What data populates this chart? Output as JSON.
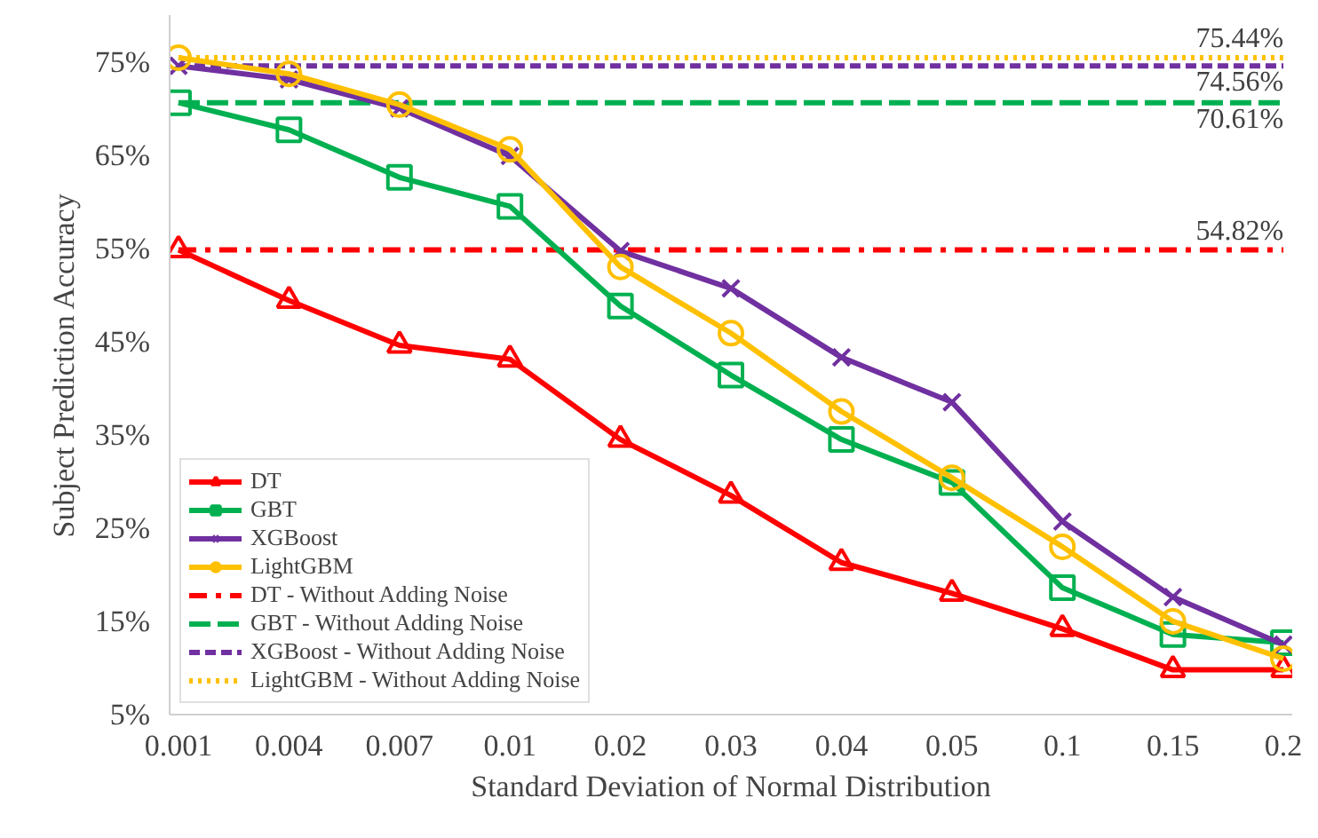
{
  "chart_data": {
    "type": "line",
    "xlabel": "Standard Deviation of Normal Distribution",
    "ylabel": "Subject Prediction Accuracy",
    "categories": [
      "0.001",
      "0.004",
      "0.007",
      "0.01",
      "0.02",
      "0.03",
      "0.04",
      "0.05",
      "0.1",
      "0.15",
      "0.2"
    ],
    "series": [
      {
        "name": "DT",
        "color": "#ff0000",
        "marker": "triangle",
        "line_style": "solid",
        "values": [
          54.82,
          49.4,
          44.6,
          43.1,
          34.5,
          28.5,
          21.3,
          18.0,
          14.2,
          9.8,
          9.8
        ]
      },
      {
        "name": "GBT",
        "color": "#00b050",
        "marker": "square",
        "line_style": "solid",
        "values": [
          70.61,
          67.7,
          62.6,
          59.5,
          48.8,
          41.4,
          34.5,
          29.9,
          18.6,
          13.6,
          12.7
        ]
      },
      {
        "name": "XGBoost",
        "color": "#7030a0",
        "marker": "cross",
        "line_style": "solid",
        "values": [
          74.56,
          73.1,
          70.0,
          64.9,
          54.7,
          50.7,
          43.3,
          38.5,
          25.7,
          17.6,
          12.5
        ]
      },
      {
        "name": "LightGBM",
        "color": "#ffc000",
        "marker": "circle",
        "line_style": "solid",
        "values": [
          75.44,
          73.7,
          70.4,
          65.6,
          53.0,
          45.9,
          37.5,
          30.4,
          23.0,
          15.0,
          11.0
        ]
      },
      {
        "name": "DT - Without Adding Noise",
        "color": "#ff0000",
        "marker": "none",
        "line_style": "dashdot",
        "values": [
          54.82,
          54.82,
          54.82,
          54.82,
          54.82,
          54.82,
          54.82,
          54.82,
          54.82,
          54.82,
          54.82
        ]
      },
      {
        "name": "GBT - Without Adding Noise",
        "color": "#00b050",
        "marker": "none",
        "line_style": "longdash",
        "values": [
          70.61,
          70.61,
          70.61,
          70.61,
          70.61,
          70.61,
          70.61,
          70.61,
          70.61,
          70.61,
          70.61
        ]
      },
      {
        "name": "XGBoost - Without Adding Noise",
        "color": "#7030a0",
        "marker": "none",
        "line_style": "dashed",
        "values": [
          74.56,
          74.56,
          74.56,
          74.56,
          74.56,
          74.56,
          74.56,
          74.56,
          74.56,
          74.56,
          74.56
        ]
      },
      {
        "name": "LightGBM - Without Adding Noise",
        "color": "#ffc000",
        "marker": "none",
        "line_style": "dotted",
        "values": [
          75.44,
          75.44,
          75.44,
          75.44,
          75.44,
          75.44,
          75.44,
          75.44,
          75.44,
          75.44,
          75.44
        ]
      }
    ],
    "annotations": [
      {
        "text": "75.44%",
        "x": "0.2",
        "y": 75.44
      },
      {
        "text": "74.56%",
        "x": "0.2",
        "y": 74.56
      },
      {
        "text": "70.61%",
        "x": "0.2",
        "y": 70.61
      },
      {
        "text": "54.82%",
        "x": "0.2",
        "y": 54.82
      }
    ],
    "ylim": [
      5,
      80
    ],
    "yticks": [
      {
        "value": 5,
        "label": "5%"
      },
      {
        "value": 15,
        "label": "15%"
      },
      {
        "value": 25,
        "label": "25%"
      },
      {
        "value": 35,
        "label": "35%"
      },
      {
        "value": 45,
        "label": "45%"
      },
      {
        "value": 55,
        "label": "55%"
      },
      {
        "value": 65,
        "label": "65%"
      },
      {
        "value": 75,
        "label": "75%"
      }
    ],
    "grid": false,
    "legend": "bottom left"
  }
}
